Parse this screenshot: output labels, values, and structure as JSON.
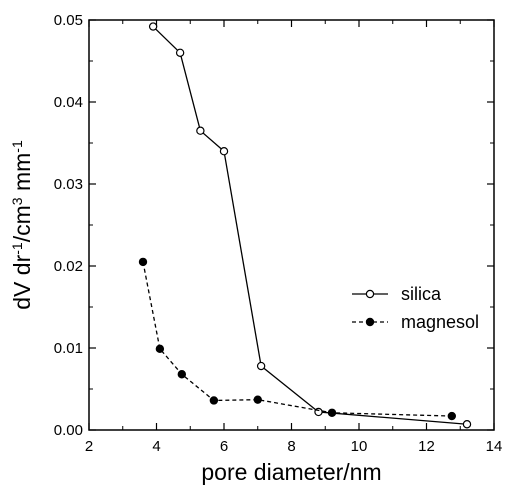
{
  "chart_data": {
    "type": "line",
    "xlabel": "pore diameter/nm",
    "ylabel_parts": [
      "dV dr",
      "-1",
      "/cm",
      "3",
      " mm",
      "-1"
    ],
    "xlim": [
      2,
      14
    ],
    "ylim": [
      0,
      0.05
    ],
    "xticks": [
      2,
      4,
      6,
      8,
      10,
      12,
      14
    ],
    "yticks": [
      0.0,
      0.01,
      0.02,
      0.03,
      0.04,
      0.05
    ],
    "xtick_labels": [
      "2",
      "4",
      "6",
      "8",
      "10",
      "12",
      "14"
    ],
    "ytick_labels": [
      "0.00",
      "0.01",
      "0.02",
      "0.03",
      "0.04",
      "0.05"
    ],
    "legend_position": "right-center",
    "grid": false,
    "series": [
      {
        "name": "silica",
        "line_style": "solid",
        "marker": "open-circle",
        "color": "#000000",
        "x": [
          3.9,
          4.7,
          5.3,
          6.0,
          7.1,
          8.8,
          13.2
        ],
        "y": [
          0.0492,
          0.046,
          0.0365,
          0.034,
          0.0078,
          0.0022,
          0.0007
        ]
      },
      {
        "name": "magnesol",
        "line_style": "dashed",
        "marker": "filled-circle",
        "color": "#000000",
        "x": [
          3.6,
          4.1,
          4.75,
          5.7,
          7.0,
          9.2,
          12.75
        ],
        "y": [
          0.0205,
          0.0099,
          0.0068,
          0.0036,
          0.0037,
          0.0021,
          0.0017
        ]
      }
    ]
  }
}
